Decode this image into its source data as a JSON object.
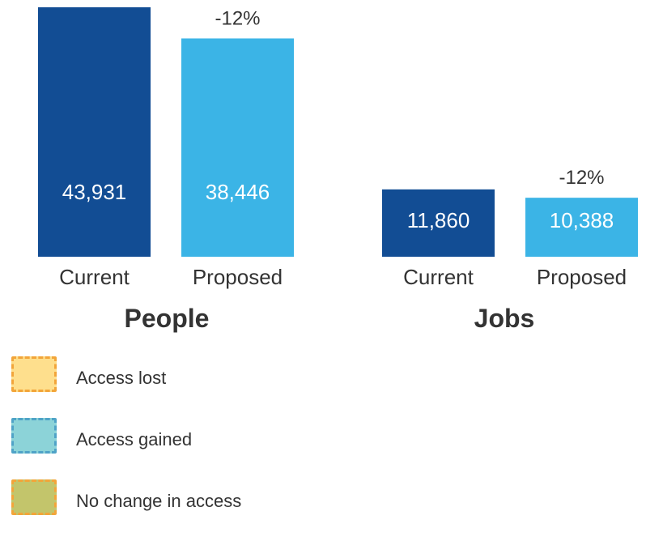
{
  "chart_data": [
    {
      "type": "bar",
      "title": "People",
      "categories": [
        "Current",
        "Proposed"
      ],
      "values": [
        43931,
        38446
      ],
      "value_labels": [
        "43,931",
        "38,446"
      ],
      "change_label": "-12%",
      "colors": [
        "#124d94",
        "#3bb4e6"
      ]
    },
    {
      "type": "bar",
      "title": "Jobs",
      "categories": [
        "Current",
        "Proposed"
      ],
      "values": [
        11860,
        10388
      ],
      "value_labels": [
        "11,860",
        "10,388"
      ],
      "change_label": "-12%",
      "colors": [
        "#124d94",
        "#3bb4e6"
      ]
    }
  ],
  "legend": {
    "items": [
      {
        "label": "Access lost",
        "fill": "#fedf8d",
        "border": "#f2a53a"
      },
      {
        "label": "Access gained",
        "fill": "#8cd3d8",
        "border": "#4fa3c7"
      },
      {
        "label": "No change in access",
        "fill": "#c3c56b",
        "border": "#f2a53a"
      }
    ]
  }
}
